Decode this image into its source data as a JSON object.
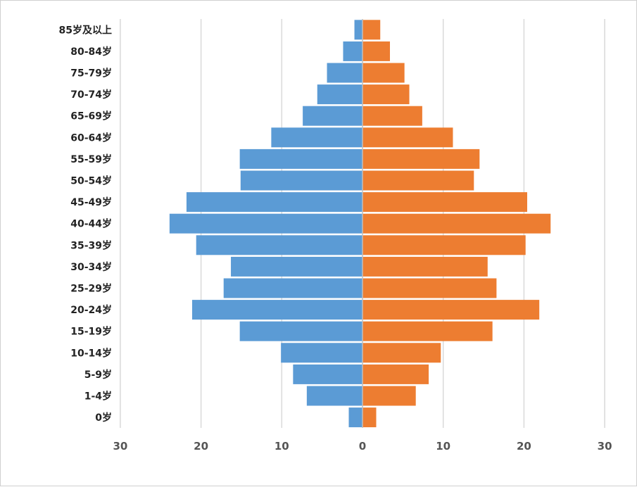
{
  "chart_data": {
    "type": "bar",
    "orientation": "horizontal",
    "layout": "population-pyramid",
    "categories": [
      "85岁及以上",
      "80-84岁",
      "75-79岁",
      "70-74岁",
      "65-69岁",
      "60-64岁",
      "55-59岁",
      "50-54岁",
      "45-49岁",
      "40-44岁",
      "35-39岁",
      "30-34岁",
      "25-29岁",
      "20-24岁",
      "15-19岁",
      "10-14岁",
      "5-9岁",
      "1-4岁",
      "0岁"
    ],
    "series": [
      {
        "side": "left",
        "color": "#5b9bd5",
        "values": [
          1.0,
          2.4,
          4.4,
          5.6,
          7.4,
          11.3,
          15.2,
          15.1,
          21.8,
          23.9,
          20.6,
          16.3,
          17.2,
          21.1,
          15.2,
          10.1,
          8.6,
          6.9,
          1.7
        ]
      },
      {
        "side": "right",
        "color": "#ed7d31",
        "values": [
          2.2,
          3.4,
          5.2,
          5.8,
          7.4,
          11.2,
          14.5,
          13.8,
          20.4,
          23.3,
          20.2,
          15.5,
          16.6,
          21.9,
          16.1,
          9.7,
          8.2,
          6.6,
          1.7
        ]
      }
    ],
    "xaxis": {
      "min": -30,
      "max": 30,
      "ticks": [
        -30,
        -20,
        -10,
        0,
        10,
        20,
        30
      ],
      "tick_labels": [
        "30",
        "20",
        "10",
        "0",
        "10",
        "20",
        "30"
      ]
    },
    "grid": true,
    "legend": "none",
    "title": "",
    "xlabel": "",
    "ylabel": ""
  }
}
